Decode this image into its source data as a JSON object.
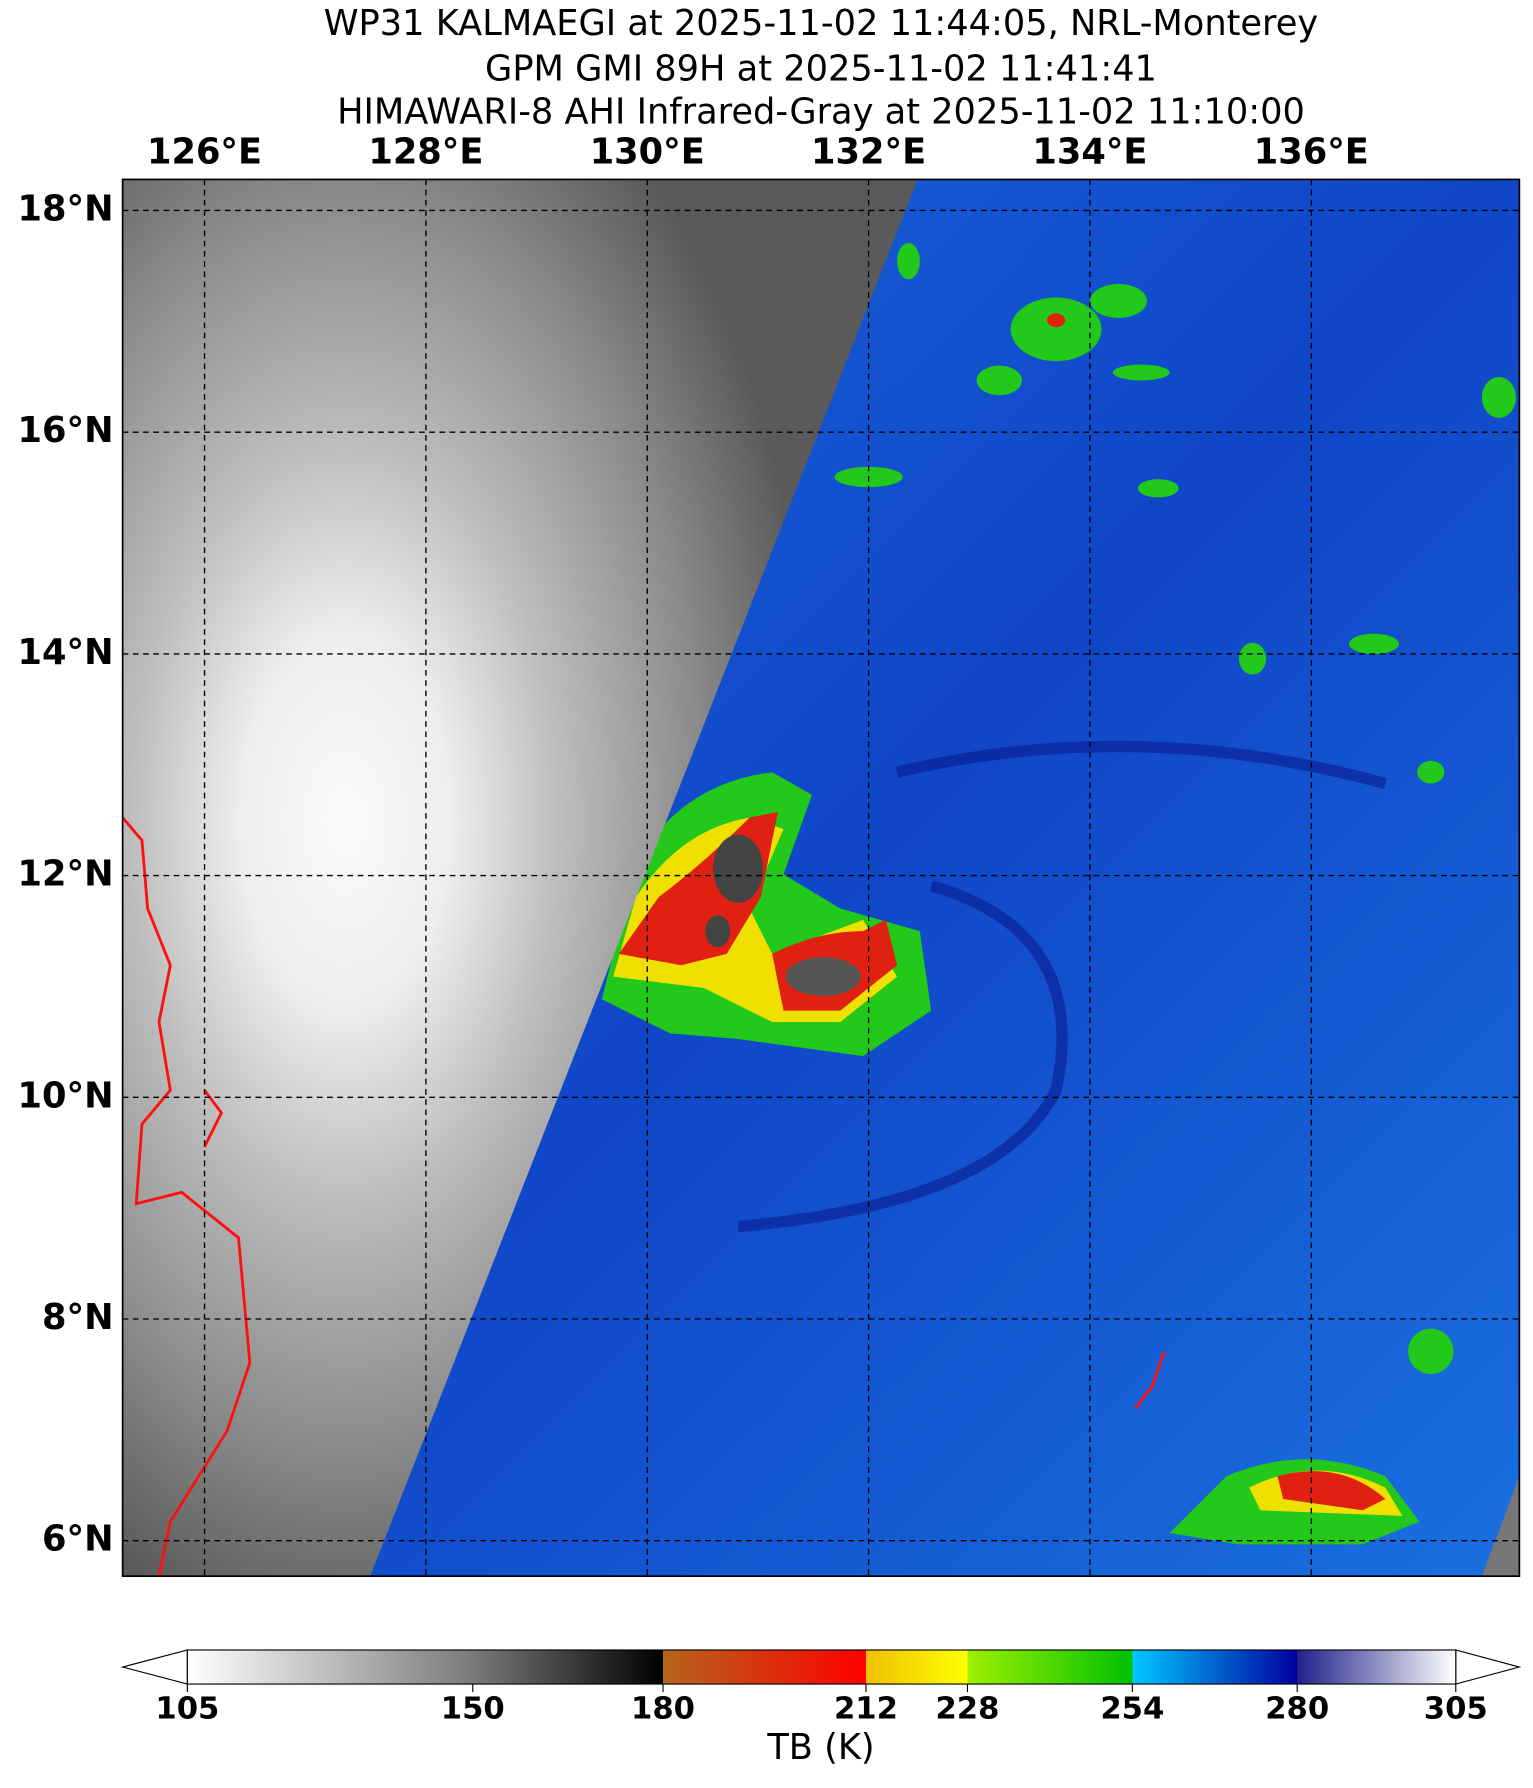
{
  "chart_data": {
    "type": "map",
    "title_lines": [
      "WP31 KALMAEGI at 2025-11-02 11:44:05, NRL-Monterey",
      "GPM GMI 89H at 2025-11-02 11:41:41",
      "HIMAWARI-8 AHI Infrared-Gray at 2025-11-02 11:10:00"
    ],
    "xlim": [
      125.26,
      137.88
    ],
    "ylim": [
      5.68,
      18.28
    ],
    "xticks": [
      {
        "value": 126,
        "label": "126°E"
      },
      {
        "value": 128,
        "label": "128°E"
      },
      {
        "value": 130,
        "label": "130°E"
      },
      {
        "value": 132,
        "label": "132°E"
      },
      {
        "value": 134,
        "label": "134°E"
      },
      {
        "value": 136,
        "label": "136°E"
      }
    ],
    "yticks": [
      {
        "value": 6,
        "label": "6°N"
      },
      {
        "value": 8,
        "label": "8°N"
      },
      {
        "value": 10,
        "label": "10°N"
      },
      {
        "value": 12,
        "label": "12°N"
      },
      {
        "value": 14,
        "label": "14°N"
      },
      {
        "value": 16,
        "label": "16°N"
      },
      {
        "value": 18,
        "label": "18°N"
      }
    ],
    "grid": true,
    "colorbar": {
      "label": "TB (K)",
      "clim": [
        105,
        305
      ],
      "ticks": [
        105,
        150,
        180,
        212,
        228,
        254,
        280,
        305
      ]
    }
  }
}
